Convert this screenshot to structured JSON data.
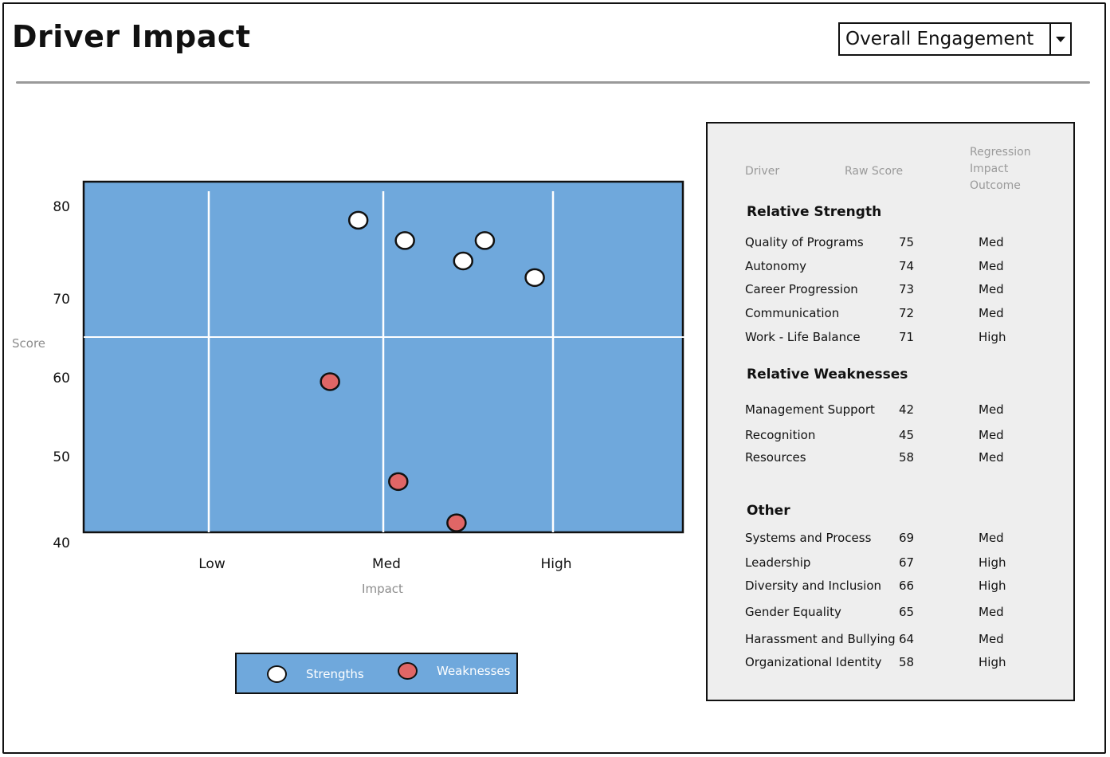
{
  "header": {
    "title": "Driver Impact",
    "dropdown": {
      "selected": "Overall Engagement"
    }
  },
  "colors": {
    "plot_background": "#6fa8dc",
    "strength_marker": "#ffffff",
    "weakness_marker": "#e06666",
    "panel_background": "#eeeeee"
  },
  "chart_data": {
    "type": "scatter",
    "xlabel": "Impact",
    "ylabel": "Score",
    "x_categories": [
      "Low",
      "Med",
      "High"
    ],
    "x_range": [
      0.25,
      3.85
    ],
    "y_ticks": [
      80,
      70,
      60,
      50,
      40
    ],
    "y_range": [
      40,
      82
    ],
    "grid": true,
    "reference_line_y": 65,
    "legend_position": "bottom",
    "series": [
      {
        "name": "Strengths",
        "color": "#ffffff",
        "points": [
          {
            "x": 1.9,
            "y": 78.5
          },
          {
            "x": 2.18,
            "y": 76.3
          },
          {
            "x": 2.53,
            "y": 74.1
          },
          {
            "x": 2.66,
            "y": 76.3
          },
          {
            "x": 2.96,
            "y": 72.3
          }
        ]
      },
      {
        "name": "Weaknesses",
        "color": "#e06666",
        "points": [
          {
            "x": 1.73,
            "y": 59.5
          },
          {
            "x": 2.14,
            "y": 47.1
          },
          {
            "x": 2.49,
            "y": 42.3
          }
        ]
      }
    ]
  },
  "panel": {
    "columns": {
      "driver": "Driver",
      "raw_score": "Raw Score",
      "regression": [
        "Regression",
        "Impact",
        "Outcome"
      ]
    },
    "sections": [
      {
        "title": "Relative Strength",
        "rows": [
          {
            "driver": "Quality of Programs",
            "score": "75",
            "impact": "Med"
          },
          {
            "driver": "Autonomy",
            "score": "74",
            "impact": "Med"
          },
          {
            "driver": "Career Progression",
            "score": "73",
            "impact": "Med"
          },
          {
            "driver": "Communication",
            "score": "72",
            "impact": "Med"
          },
          {
            "driver": "Work - Life Balance",
            "score": "71",
            "impact": "High"
          }
        ]
      },
      {
        "title": "Relative Weaknesses",
        "rows": [
          {
            "driver": "Management Support",
            "score": "42",
            "impact": "Med"
          },
          {
            "driver": "Recognition",
            "score": "45",
            "impact": "Med"
          },
          {
            "driver": "Resources",
            "score": "58",
            "impact": "Med"
          }
        ]
      },
      {
        "title": "Other",
        "rows": [
          {
            "driver": "Systems and Process",
            "score": "69",
            "impact": "Med"
          },
          {
            "driver": "Leadership",
            "score": "67",
            "impact": "High"
          },
          {
            "driver": "Diversity and Inclusion",
            "score": "66",
            "impact": "High"
          },
          {
            "driver": "Gender Equality",
            "score": "65",
            "impact": "Med"
          },
          {
            "driver": "Harassment and Bullying",
            "score": "64",
            "impact": "Med"
          },
          {
            "driver": "Organizational Identity",
            "score": "58",
            "impact": "High"
          }
        ]
      }
    ]
  }
}
